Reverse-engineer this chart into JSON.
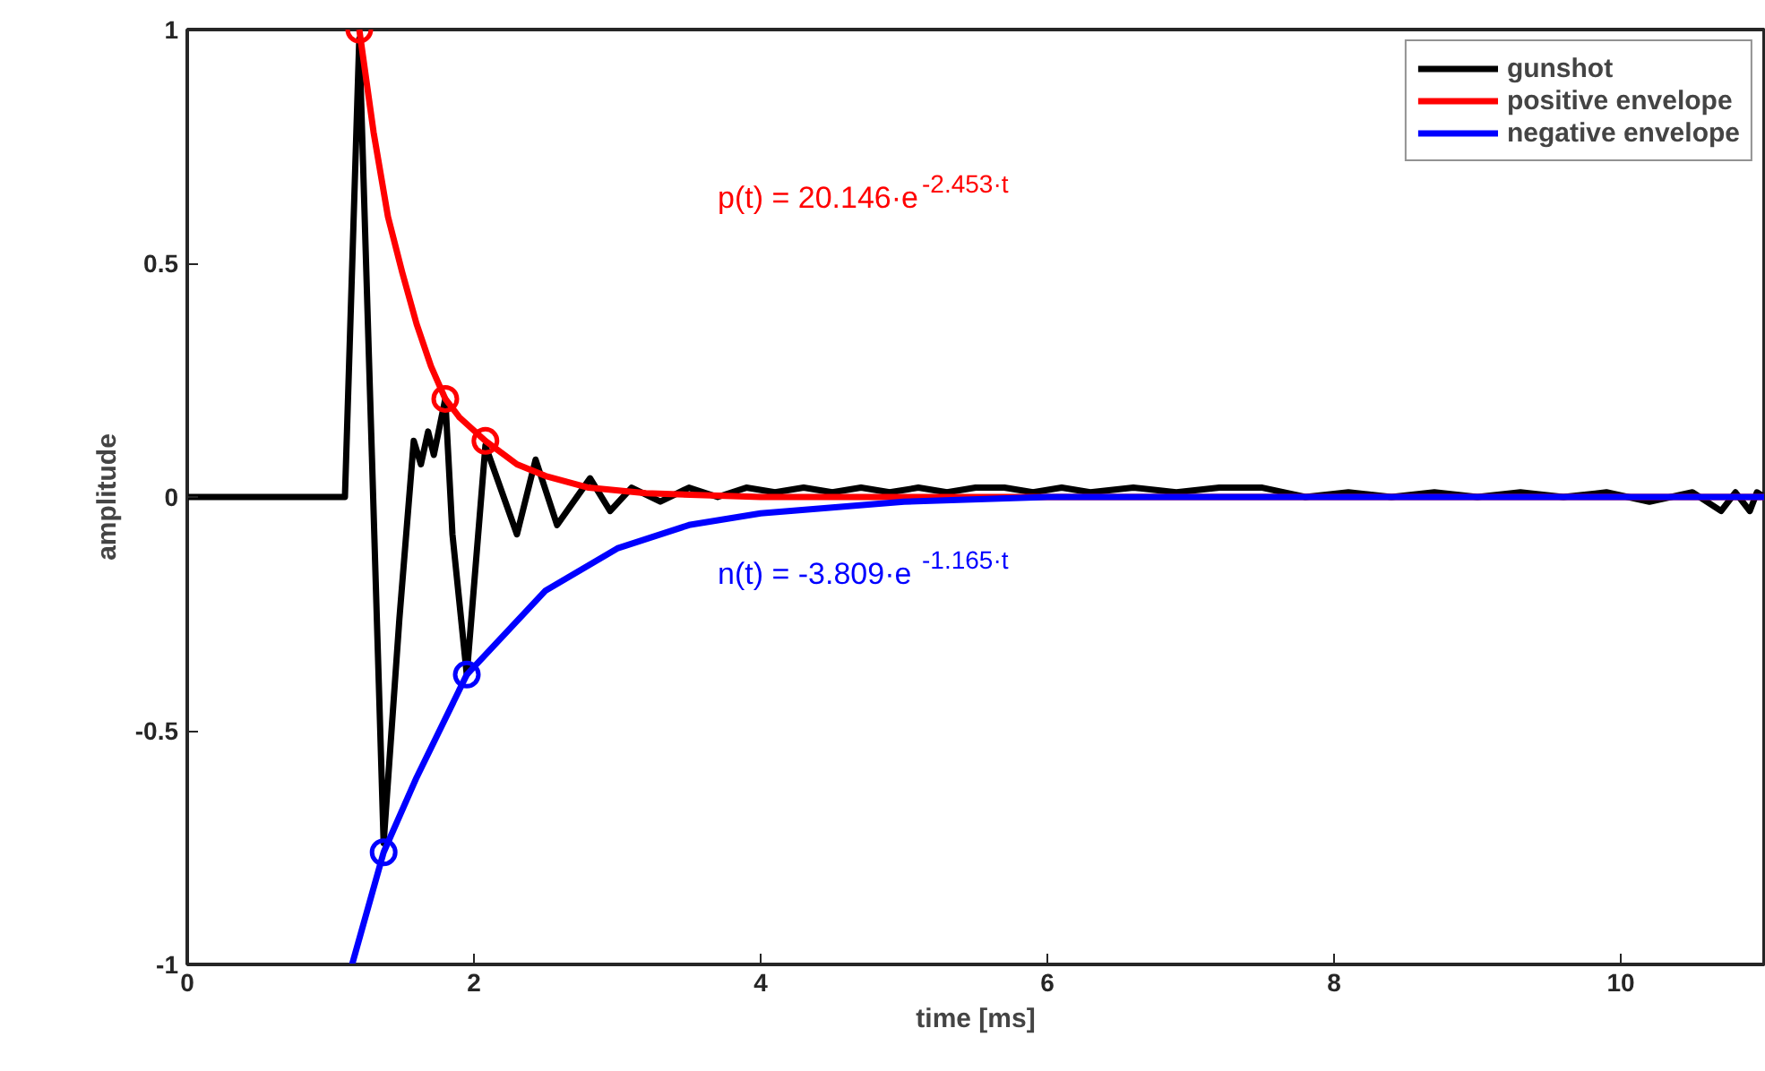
{
  "chart_data": {
    "type": "line",
    "xlabel": "time [ms]",
    "ylabel": "amplitude",
    "xlim": [
      0,
      11
    ],
    "ylim": [
      -1,
      1
    ],
    "xticks": [
      0,
      2,
      4,
      6,
      8,
      10
    ],
    "yticks": [
      -1,
      -0.5,
      0,
      0.5,
      1
    ],
    "grid": false,
    "legend": "top right",
    "marker": "none",
    "line_style": "solid",
    "series": [
      {
        "name": "gunshot",
        "color": "#000000",
        "x": [
          0,
          0.5,
          1.0,
          1.1,
          1.2,
          1.37,
          1.48,
          1.58,
          1.63,
          1.68,
          1.72,
          1.8,
          1.85,
          1.95,
          2.08,
          2.3,
          2.43,
          2.58,
          2.81,
          2.95,
          3.1,
          3.3,
          3.5,
          3.7,
          3.9,
          4.1,
          4.3,
          4.5,
          4.7,
          4.9,
          5.1,
          5.3,
          5.5,
          5.7,
          5.9,
          6.1,
          6.3,
          6.6,
          6.9,
          7.2,
          7.5,
          7.8,
          8.1,
          8.4,
          8.7,
          9.0,
          9.3,
          9.6,
          9.9,
          10.2,
          10.5,
          10.7,
          10.8,
          10.9,
          10.95,
          11
        ],
        "values": [
          0,
          0,
          0,
          0,
          0.98,
          -0.74,
          -0.26,
          0.12,
          0.07,
          0.14,
          0.09,
          0.21,
          -0.08,
          -0.38,
          0.11,
          -0.08,
          0.08,
          -0.06,
          0.04,
          -0.03,
          0.02,
          -0.01,
          0.02,
          0,
          0.02,
          0.01,
          0.02,
          0.01,
          0.02,
          0.01,
          0.02,
          0.01,
          0.02,
          0.02,
          0.01,
          0.02,
          0.01,
          0.02,
          0.01,
          0.02,
          0.02,
          0,
          0.01,
          0,
          0.01,
          0,
          0.01,
          0,
          0.01,
          -0.01,
          0.01,
          -0.03,
          0.01,
          -0.03,
          0.01,
          0
        ]
      },
      {
        "name": "positive envelope",
        "color": "#ff0000",
        "x": [
          1.2,
          1.3,
          1.4,
          1.5,
          1.6,
          1.7,
          1.8,
          1.9,
          2.08,
          2.3,
          2.5,
          2.8,
          3.2,
          4,
          6,
          11
        ],
        "values": [
          1.0,
          0.78,
          0.6,
          0.48,
          0.37,
          0.28,
          0.21,
          0.17,
          0.12,
          0.07,
          0.045,
          0.02,
          0.008,
          0,
          0,
          0
        ]
      },
      {
        "name": "negative envelope",
        "color": "#0000ff",
        "x": [
          1.15,
          1.37,
          1.6,
          1.95,
          2.5,
          3,
          3.5,
          4,
          5,
          6,
          8,
          11
        ],
        "values": [
          -1,
          -0.76,
          -0.6,
          -0.38,
          -0.2,
          -0.11,
          -0.06,
          -0.035,
          -0.01,
          0,
          0,
          0
        ]
      },
      {
        "type": "scatter",
        "marker": "circle",
        "color": "#ff0000",
        "x": [
          1.2,
          1.8,
          2.08
        ],
        "values": [
          1.0,
          0.21,
          0.12
        ]
      },
      {
        "type": "scatter",
        "marker": "circle",
        "color": "#0000ff",
        "x": [
          1.37,
          1.95
        ],
        "values": [
          -0.76,
          -0.38
        ]
      }
    ],
    "annotations": [
      "p(t) = 20.146·e$^{-2.453·t}$",
      "n(t) = -3.809·e$^{-1.165·t}$"
    ]
  }
}
